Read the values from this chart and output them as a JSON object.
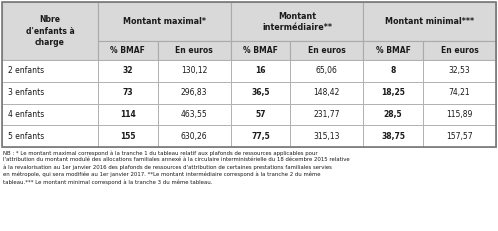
{
  "col_header_row1": [
    "Nbre\nd'enfants à\ncharge",
    "Montant maximal*",
    "Montant\nintermédiaire**",
    "Montant minimal***"
  ],
  "col_header_row2": [
    "% BMAF",
    "En euros",
    "% BMAF",
    "En euros",
    "% BMAF",
    "En euros"
  ],
  "rows": [
    [
      "2 enfants",
      "32",
      "130,12",
      "16",
      "65,06",
      "8",
      "32,53"
    ],
    [
      "3 enfants",
      "73",
      "296,83",
      "36,5",
      "148,42",
      "18,25",
      "74,21"
    ],
    [
      "4 enfants",
      "114",
      "463,55",
      "57",
      "231,77",
      "28,5",
      "115,89"
    ],
    [
      "5 enfants",
      "155",
      "630,26",
      "77,5",
      "315,13",
      "38,75",
      "157,57"
    ]
  ],
  "bold_cols": [
    1,
    3,
    5
  ],
  "footnote": "NB : * Le montant maximal correspond à la tranche 1 du tableau relatif aux plafonds de ressources applicables pour\nl'attribution du montant modulé des allocations familiales annexé à la circulaire interministérielle du 18 décembre 2015 relative\nà la revalorisation au 1er janvier 2016 des plafonds de ressources d'attribution de certaines prestations familiales servies\nen métropole, qui sera modifiée au 1er janvier 2017. **Le montant intermédiaire correspond à la tranche 2 du même\ntableau.*** Le montant minimal correspond à la tranche 3 du même tableau.",
  "bg_color": "#ffffff",
  "header_bg": "#d9d9d9",
  "cell_bg": "#ffffff",
  "border_color": "#aaaaaa",
  "text_color": "#1a1a1a",
  "footnote_color": "#1a1a1a"
}
